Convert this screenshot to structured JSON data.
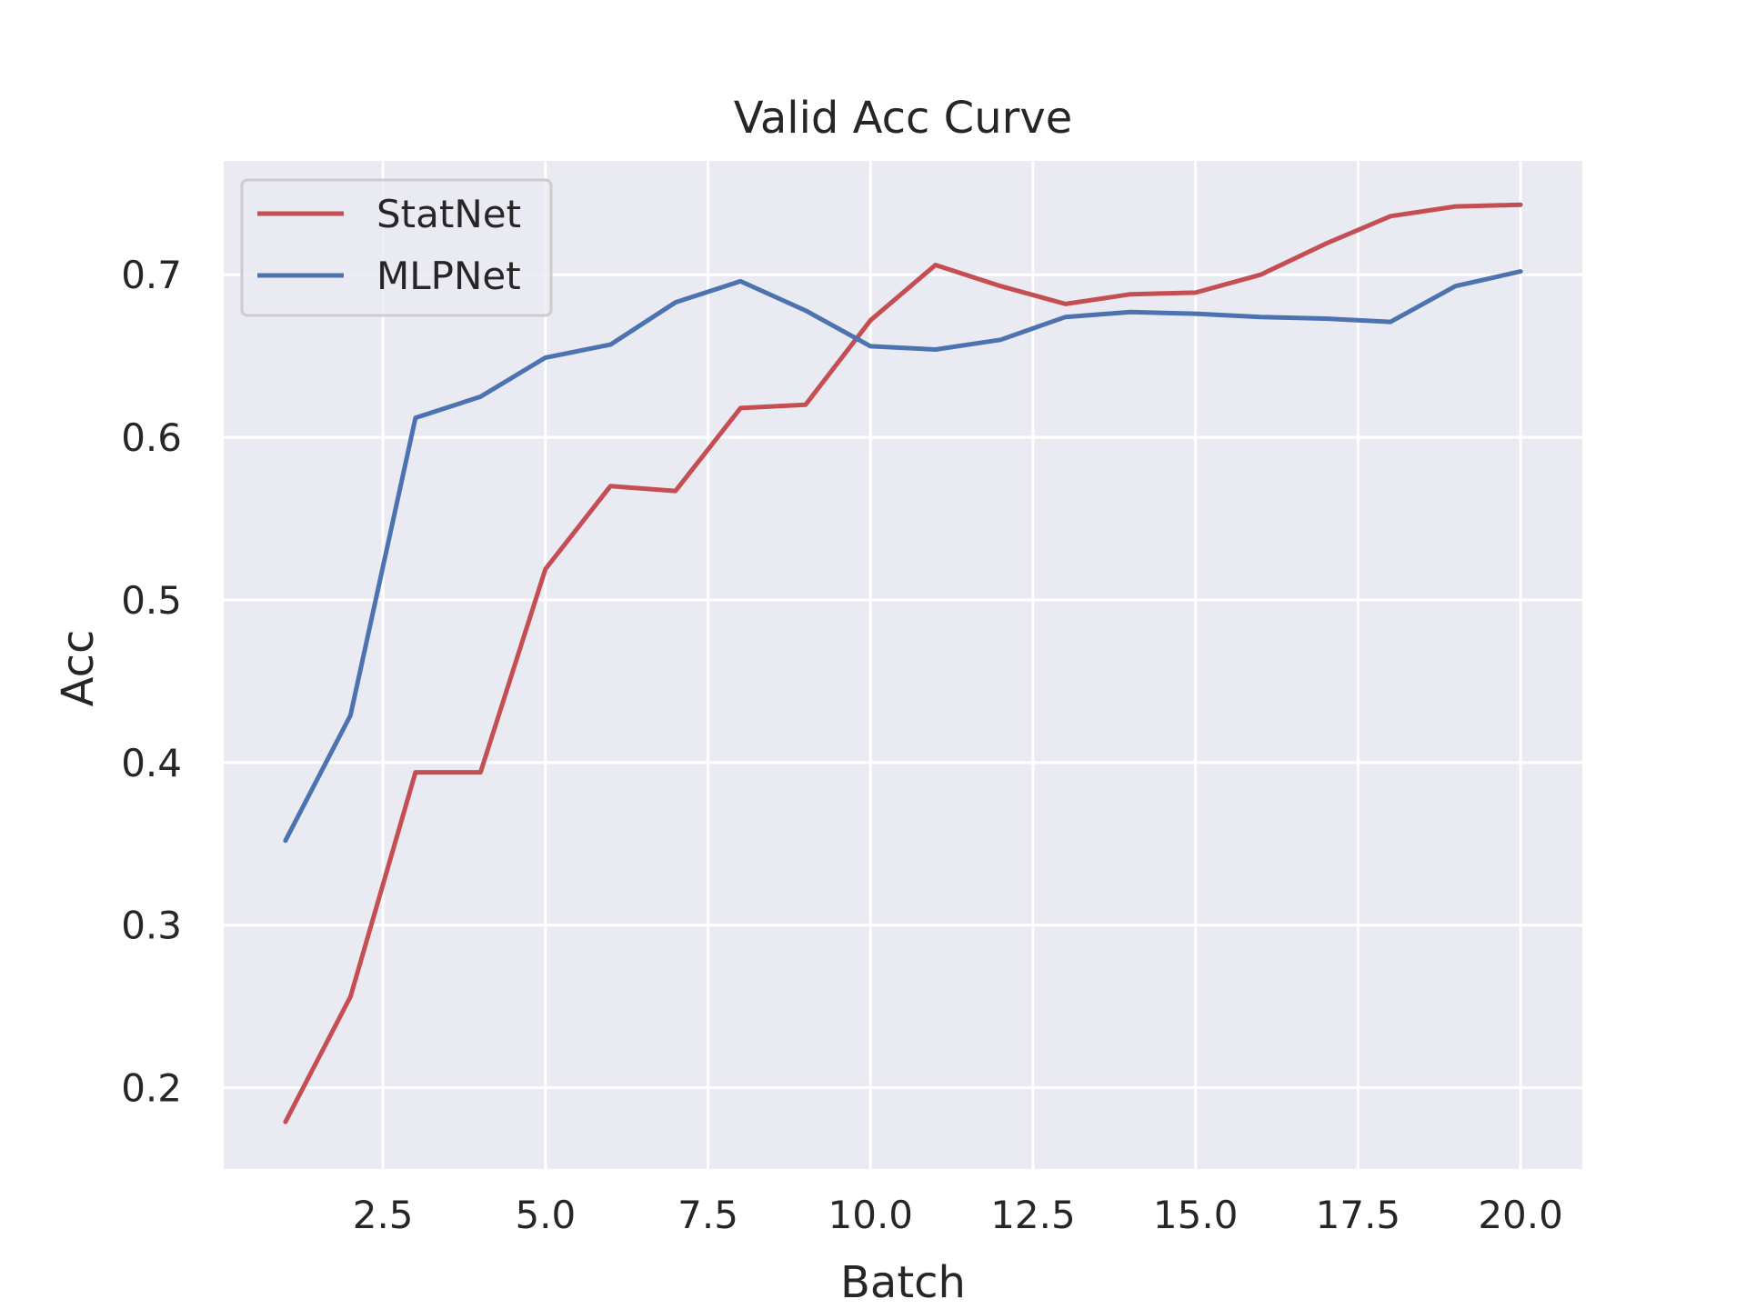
{
  "chart_data": {
    "type": "line",
    "title": "Valid Acc Curve",
    "xlabel": "Batch",
    "ylabel": "Acc",
    "xlim": [
      0.05,
      20.95
    ],
    "ylim": [
      0.15,
      0.77
    ],
    "x_ticks": [
      2.5,
      5.0,
      7.5,
      10.0,
      12.5,
      15.0,
      17.5,
      20.0
    ],
    "x_tick_labels": [
      "2.5",
      "5.0",
      "7.5",
      "10.0",
      "12.5",
      "15.0",
      "17.5",
      "20.0"
    ],
    "y_ticks": [
      0.2,
      0.3,
      0.4,
      0.5,
      0.6,
      0.7
    ],
    "y_tick_labels": [
      "0.2",
      "0.3",
      "0.4",
      "0.5",
      "0.6",
      "0.7"
    ],
    "grid": true,
    "legend_position": "top-left",
    "x": [
      1,
      2,
      3,
      4,
      5,
      6,
      7,
      8,
      9,
      10,
      11,
      12,
      13,
      14,
      15,
      16,
      17,
      18,
      19,
      20
    ],
    "series": [
      {
        "name": "StatNet",
        "color": "#c44e52",
        "values": [
          0.179,
          0.256,
          0.394,
          0.394,
          0.519,
          0.57,
          0.567,
          0.618,
          0.62,
          0.672,
          0.706,
          0.693,
          0.682,
          0.688,
          0.689,
          0.7,
          0.719,
          0.736,
          0.742,
          0.743
        ]
      },
      {
        "name": "MLPNet",
        "color": "#4c72b0",
        "values": [
          0.352,
          0.429,
          0.612,
          0.625,
          0.649,
          0.657,
          0.683,
          0.696,
          0.678,
          0.656,
          0.654,
          0.66,
          0.674,
          0.677,
          0.676,
          0.674,
          0.673,
          0.671,
          0.693,
          0.702
        ]
      }
    ]
  },
  "style": {
    "plot_background": "#eaeaf2",
    "grid_color": "#ffffff",
    "text_color": "#262626"
  }
}
